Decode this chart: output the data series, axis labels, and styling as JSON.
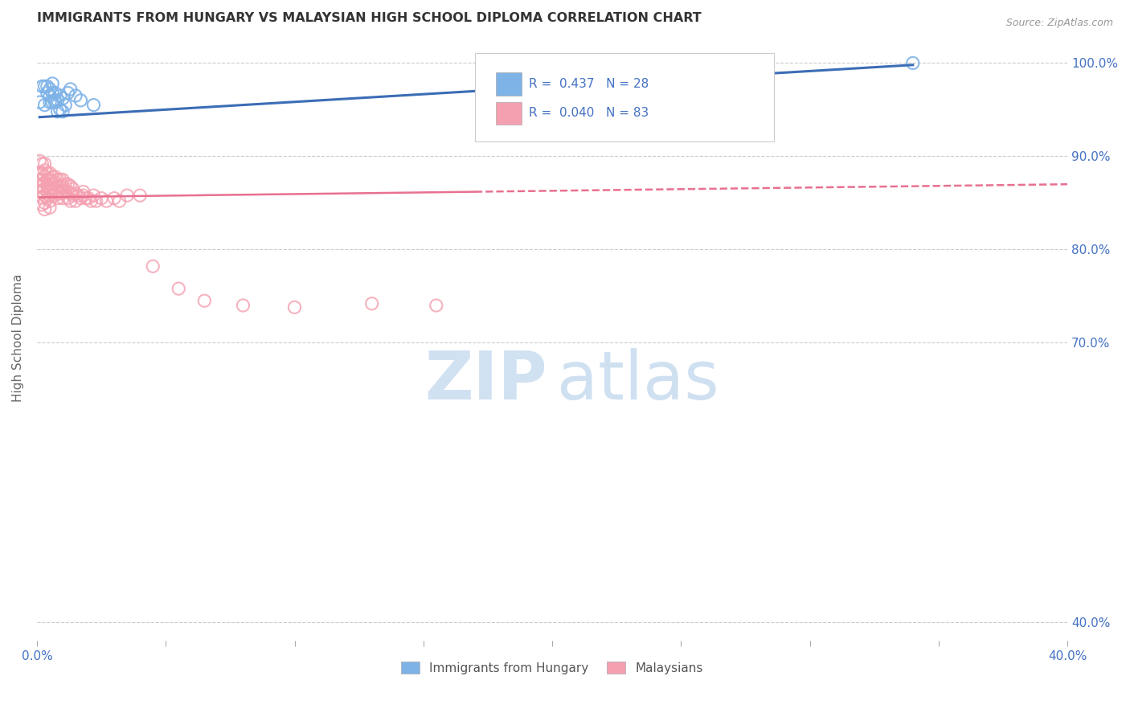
{
  "title": "IMMIGRANTS FROM HUNGARY VS MALAYSIAN HIGH SCHOOL DIPLOMA CORRELATION CHART",
  "source": "Source: ZipAtlas.com",
  "ylabel": "High School Diploma",
  "ytick_labels": [
    "100.0%",
    "90.0%",
    "80.0%",
    "70.0%",
    "40.0%"
  ],
  "ytick_positions": [
    1.0,
    0.9,
    0.8,
    0.7,
    0.4
  ],
  "xlim": [
    0.0,
    0.4
  ],
  "ylim": [
    0.38,
    1.03
  ],
  "hungary_R": 0.437,
  "hungary_N": 28,
  "malaysian_R": 0.04,
  "malaysian_N": 83,
  "hungary_color": "#7EB3E8",
  "malaysian_color": "#F4A0B0",
  "trendline_hungary_color": "#3B6DB5",
  "trendline_malaysian_color": "#E87090",
  "watermark_zip": "ZIP",
  "watermark_atlas": "atlas",
  "background_color": "#FFFFFF",
  "hungary_points_x": [
    0.001,
    0.002,
    0.003,
    0.003,
    0.004,
    0.004,
    0.005,
    0.005,
    0.005,
    0.006,
    0.006,
    0.006,
    0.007,
    0.007,
    0.007,
    0.008,
    0.008,
    0.009,
    0.009,
    0.01,
    0.01,
    0.011,
    0.012,
    0.013,
    0.015,
    0.017,
    0.022,
    0.34
  ],
  "hungary_points_y": [
    0.958,
    0.975,
    0.975,
    0.955,
    0.975,
    0.968,
    0.965,
    0.958,
    0.972,
    0.958,
    0.968,
    0.978,
    0.96,
    0.968,
    0.958,
    0.948,
    0.96,
    0.95,
    0.965,
    0.948,
    0.962,
    0.955,
    0.968,
    0.972,
    0.965,
    0.96,
    0.955,
    1.0
  ],
  "malaysian_points_x": [
    0.001,
    0.001,
    0.001,
    0.001,
    0.001,
    0.002,
    0.002,
    0.002,
    0.002,
    0.002,
    0.002,
    0.002,
    0.003,
    0.003,
    0.003,
    0.003,
    0.003,
    0.003,
    0.003,
    0.003,
    0.004,
    0.004,
    0.004,
    0.004,
    0.004,
    0.005,
    0.005,
    0.005,
    0.005,
    0.005,
    0.005,
    0.006,
    0.006,
    0.006,
    0.007,
    0.007,
    0.007,
    0.007,
    0.008,
    0.008,
    0.008,
    0.008,
    0.009,
    0.009,
    0.009,
    0.01,
    0.01,
    0.01,
    0.01,
    0.011,
    0.011,
    0.012,
    0.012,
    0.012,
    0.013,
    0.013,
    0.013,
    0.014,
    0.014,
    0.015,
    0.015,
    0.016,
    0.017,
    0.018,
    0.018,
    0.019,
    0.02,
    0.021,
    0.022,
    0.023,
    0.025,
    0.027,
    0.03,
    0.032,
    0.035,
    0.04,
    0.045,
    0.055,
    0.065,
    0.08,
    0.1,
    0.13,
    0.155
  ],
  "malaysian_points_y": [
    0.895,
    0.882,
    0.875,
    0.868,
    0.862,
    0.892,
    0.882,
    0.875,
    0.868,
    0.862,
    0.856,
    0.848,
    0.892,
    0.885,
    0.878,
    0.872,
    0.865,
    0.858,
    0.85,
    0.843,
    0.882,
    0.875,
    0.868,
    0.862,
    0.855,
    0.882,
    0.875,
    0.865,
    0.858,
    0.852,
    0.845,
    0.878,
    0.87,
    0.862,
    0.878,
    0.872,
    0.865,
    0.858,
    0.875,
    0.868,
    0.862,
    0.855,
    0.875,
    0.868,
    0.86,
    0.875,
    0.868,
    0.862,
    0.855,
    0.87,
    0.862,
    0.87,
    0.862,
    0.855,
    0.868,
    0.86,
    0.852,
    0.865,
    0.858,
    0.86,
    0.852,
    0.858,
    0.855,
    0.862,
    0.858,
    0.855,
    0.855,
    0.852,
    0.858,
    0.852,
    0.855,
    0.852,
    0.855,
    0.852,
    0.858,
    0.858,
    0.782,
    0.758,
    0.745,
    0.74,
    0.738,
    0.742,
    0.74
  ],
  "hungary_trendline_x": [
    0.001,
    0.34
  ],
  "hungary_trendline_y": [
    0.942,
    0.998
  ],
  "malaysian_trendline_x": [
    0.001,
    0.4
  ],
  "malaysian_trendline_y": [
    0.856,
    0.87
  ]
}
